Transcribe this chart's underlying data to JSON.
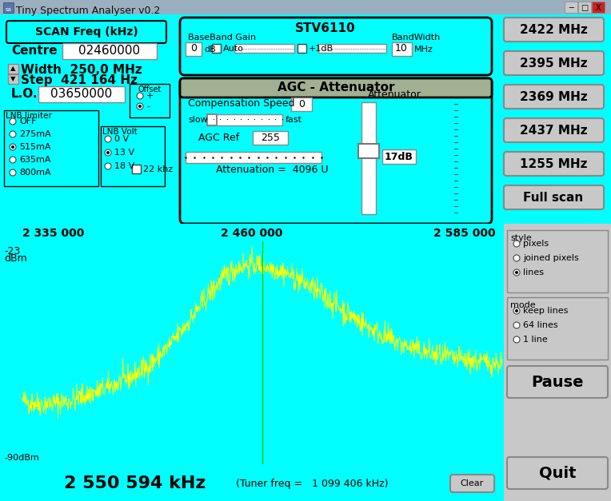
{
  "title": "Tiny Spectrum Analyser v0.2",
  "bg_cyan": "#00FFFF",
  "bg_gray": "#A0B8C8",
  "plot_bg": "#000000",
  "yellow": "#FFFF00",
  "green_line": "#00CC00",
  "white": "#FFFFFF",
  "black": "#000000",
  "gray_btn": "#C8C8C8",
  "agc_green": "#A0B090",
  "centre_freq": "02460000",
  "lo_freq": "03650000",
  "width_mhz": "250,0 MHz",
  "step_hz": "421 164 Hz",
  "freq_left": "2 335 000",
  "freq_center": "2 460 000",
  "freq_right": "2 585 000",
  "dbm_top": "-23",
  "dbm_top2": "dBm",
  "dbm_bottom": "-90dBm",
  "status_freq": "2 550 594 kHz",
  "tuner_freq": "(Tuner freq =   1 099 406 kHz)",
  "btn_freqs": [
    "2422 MHz",
    "2395 MHz",
    "2369 MHz",
    "2437 MHz",
    "1255 MHz"
  ],
  "btn_full_scan": "Full scan",
  "btn_pause": "Pause",
  "btn_quit": "Quit",
  "btn_clear": "Clear",
  "scan_btn_label": "SCAN Freq (kHz)",
  "agc_ref": "255",
  "agc_speed": "0",
  "bandwidth": "10",
  "baseband_gain": "0",
  "attenuation": "4096 U",
  "attenuation_db": "17dB",
  "agc_title": "AGC - Attenuator",
  "stv_title": "STV6110",
  "titlebar_bg": "#9AAFC0",
  "right_panel_bg": "#C8C8C8",
  "style_labels": [
    "pixels",
    "joined pixels",
    "lines"
  ],
  "style_selected": 2,
  "mode_labels": [
    "keep lines",
    "64 lines",
    "1 line"
  ],
  "mode_selected": 0
}
